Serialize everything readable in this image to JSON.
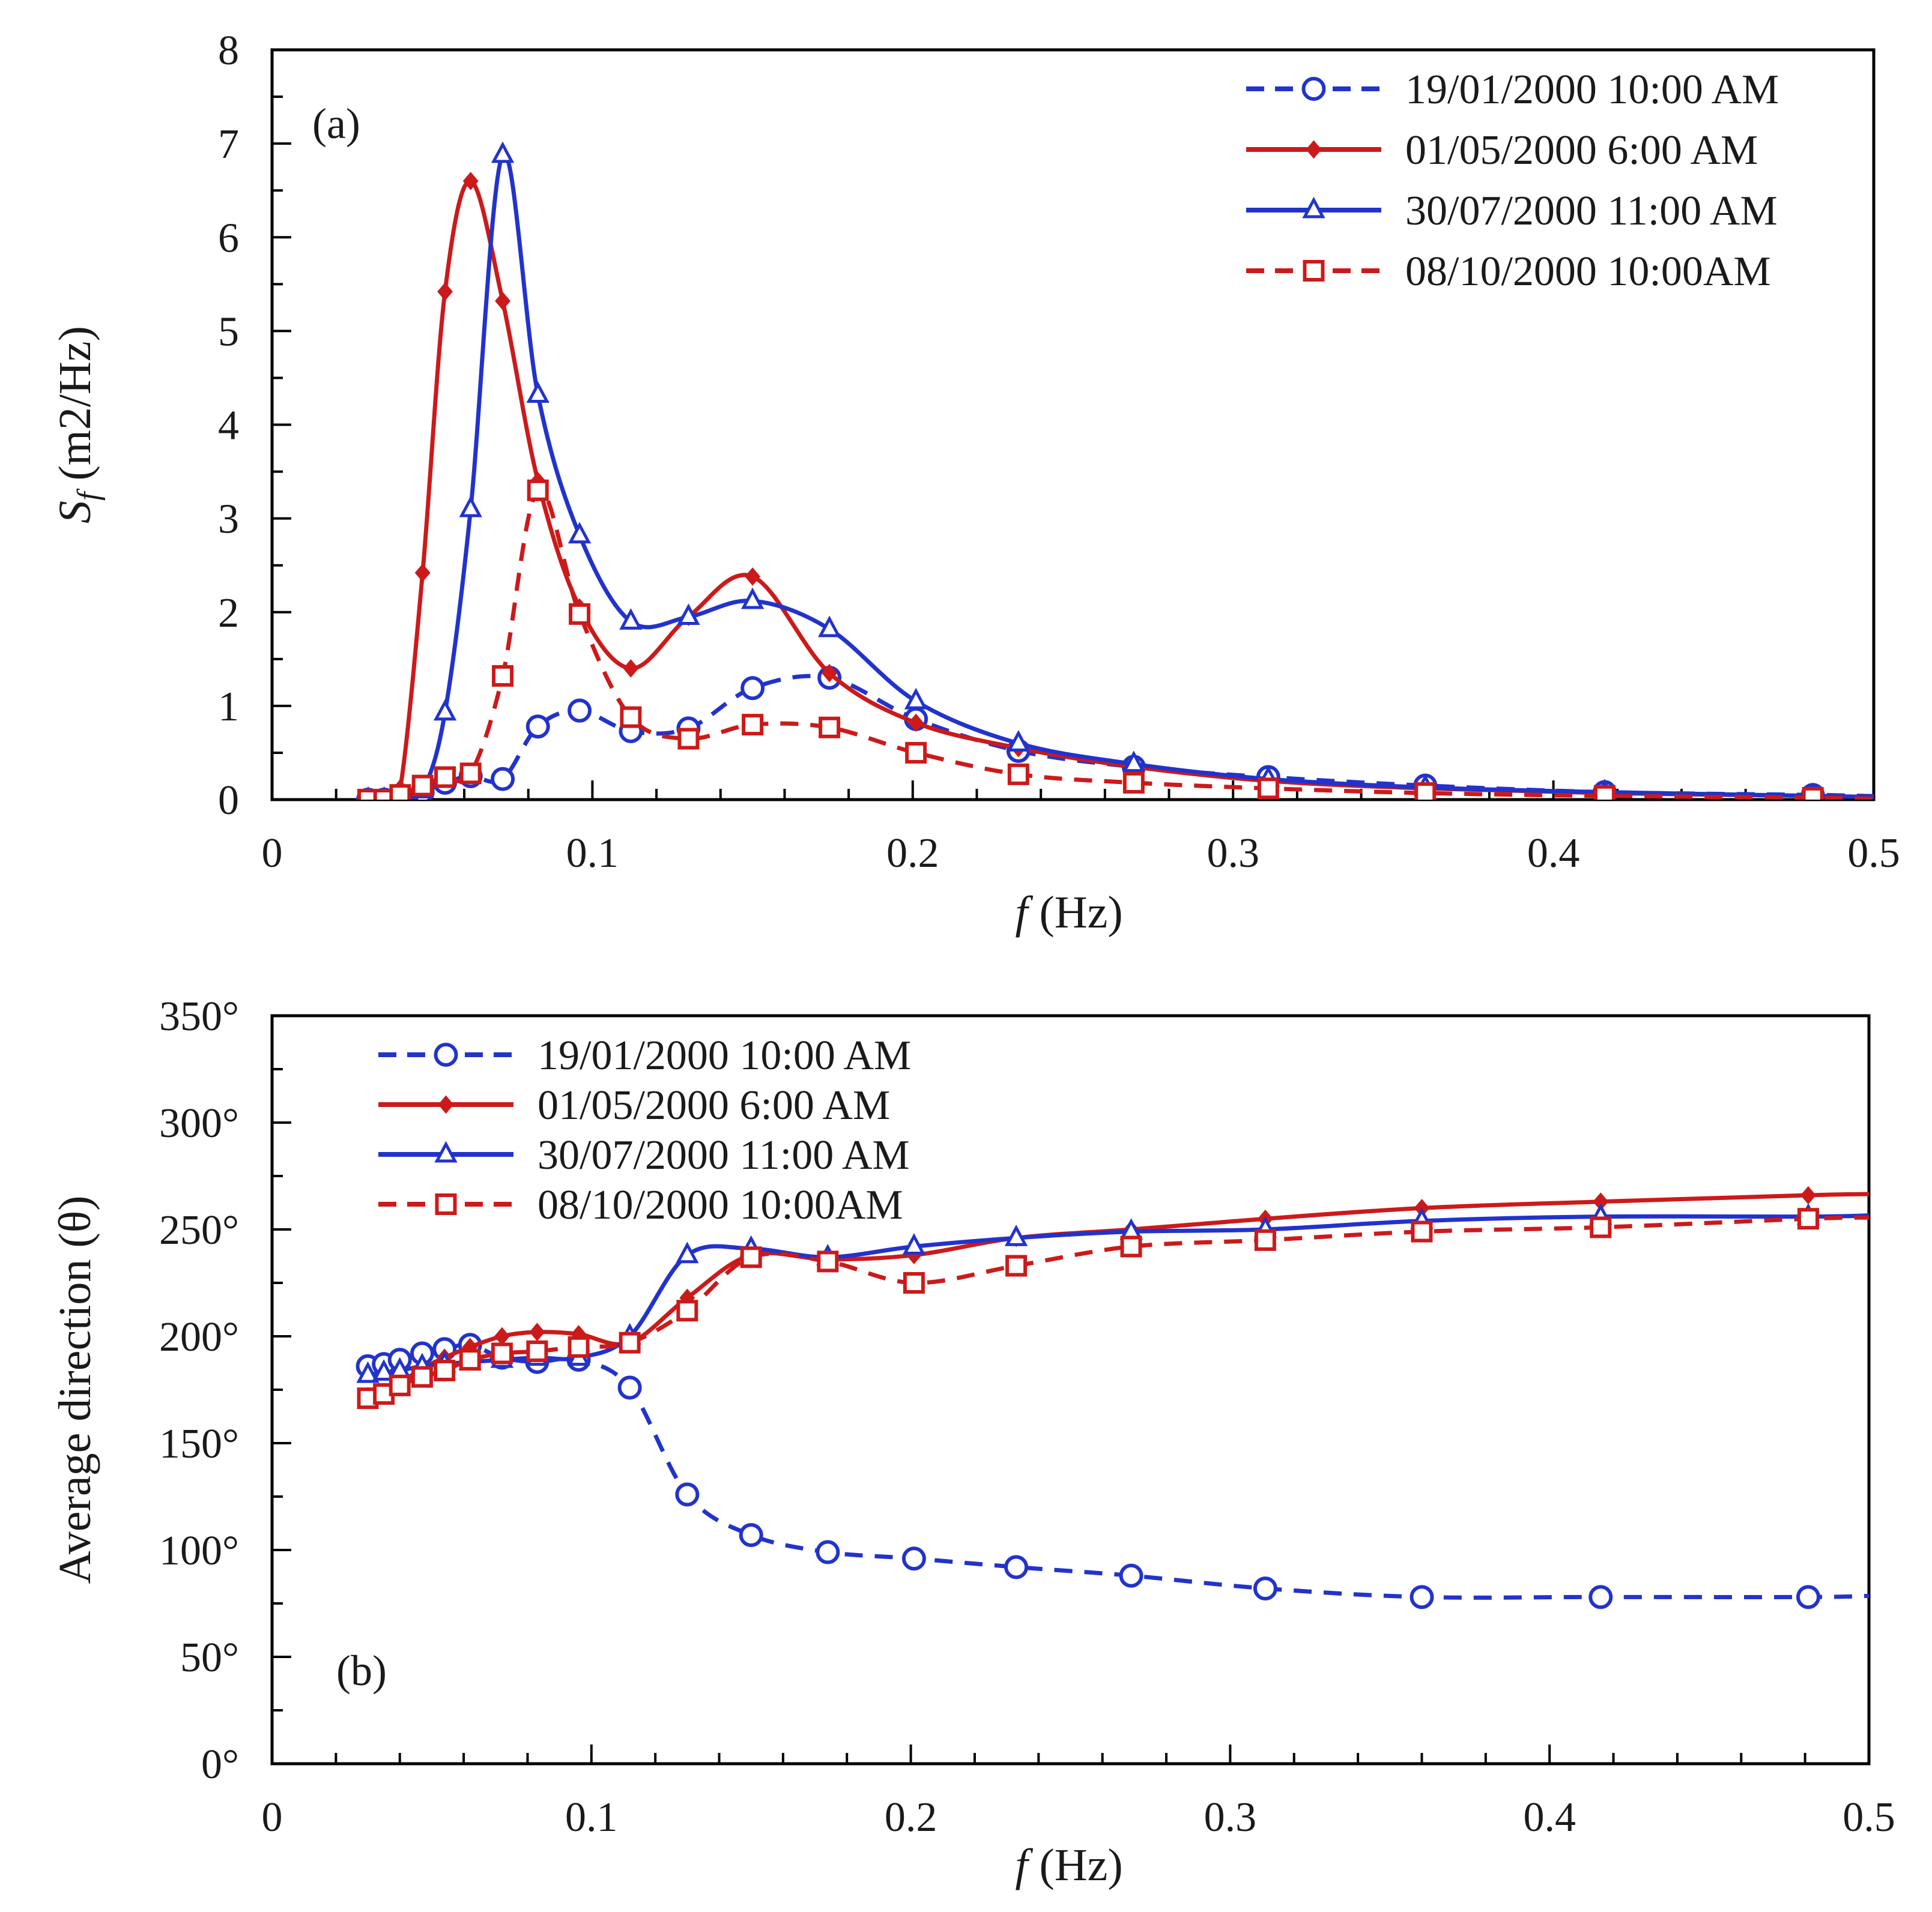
{
  "colors": {
    "blue": "#2233cc",
    "red": "#cc1a1a",
    "axis": "#000000"
  },
  "chart_data": [
    {
      "type": "line",
      "panel_tag": "(a)",
      "xlabel_italic": "f",
      "xlabel_unit": " (Hz)",
      "ylabel_italic": "S",
      "ylabel_sub": "f",
      "ylabel_unit": " (m2/Hz)",
      "xlim": [
        0,
        0.5
      ],
      "ylim": [
        0,
        8
      ],
      "xticks": [
        0,
        0.1,
        0.2,
        0.3,
        0.4,
        0.5
      ],
      "xtick_labels": [
        "0",
        "0.1",
        "0.2",
        "0.3",
        "0.4",
        "0.5"
      ],
      "yticks": [
        0,
        1,
        2,
        3,
        4,
        5,
        6,
        7,
        8
      ],
      "ytick_labels": [
        "0",
        "1",
        "2",
        "3",
        "4",
        "5",
        "6",
        "7",
        "8"
      ],
      "legend_position": "top-right",
      "grid": false,
      "series": [
        {
          "name": "19/01/2000 10:00 AM",
          "color": "#2233cc",
          "dashed": true,
          "marker": "circle",
          "x": [
            0.03,
            0.035,
            0.04,
            0.047,
            0.054,
            0.062,
            0.072,
            0.083,
            0.096,
            0.112,
            0.13,
            0.15,
            0.174,
            0.201,
            0.233,
            0.269,
            0.311,
            0.36,
            0.416,
            0.481
          ],
          "y": [
            0.0,
            0.0,
            0.02,
            0.08,
            0.18,
            0.25,
            0.22,
            0.78,
            0.95,
            0.73,
            0.76,
            1.19,
            1.3,
            0.86,
            0.52,
            0.35,
            0.24,
            0.15,
            0.08,
            0.05
          ]
        },
        {
          "name": "01/05/2000 6:00 AM",
          "color": "#cc1a1a",
          "dashed": false,
          "marker": "diamond",
          "x": [
            0.03,
            0.035,
            0.04,
            0.047,
            0.054,
            0.062,
            0.072,
            0.083,
            0.096,
            0.112,
            0.13,
            0.15,
            0.174,
            0.201,
            0.233,
            0.269,
            0.311,
            0.36,
            0.416,
            0.481
          ],
          "y": [
            0.0,
            0.0,
            0.12,
            2.42,
            5.42,
            6.6,
            5.32,
            3.4,
            2.05,
            1.4,
            1.95,
            2.38,
            1.35,
            0.82,
            0.55,
            0.35,
            0.2,
            0.12,
            0.07,
            0.04
          ]
        },
        {
          "name": "30/07/2000 11:00 AM",
          "color": "#2233cc",
          "dashed": false,
          "marker": "triangle",
          "x": [
            0.03,
            0.035,
            0.04,
            0.047,
            0.054,
            0.062,
            0.072,
            0.083,
            0.096,
            0.112,
            0.13,
            0.15,
            0.174,
            0.201,
            0.233,
            0.269,
            0.311,
            0.36,
            0.416,
            0.481
          ],
          "y": [
            0.0,
            0.0,
            0.02,
            0.1,
            0.93,
            3.1,
            6.88,
            4.32,
            2.82,
            1.9,
            1.95,
            2.12,
            1.82,
            1.05,
            0.6,
            0.38,
            0.22,
            0.13,
            0.08,
            0.04
          ]
        },
        {
          "name": "08/10/2000 10:00AM",
          "color": "#cc1a1a",
          "dashed": true,
          "marker": "square",
          "x": [
            0.03,
            0.035,
            0.04,
            0.047,
            0.054,
            0.062,
            0.072,
            0.083,
            0.096,
            0.112,
            0.13,
            0.15,
            0.174,
            0.201,
            0.233,
            0.269,
            0.311,
            0.36,
            0.416,
            0.481
          ],
          "y": [
            0.0,
            0.0,
            0.05,
            0.15,
            0.24,
            0.28,
            1.32,
            3.3,
            1.98,
            0.88,
            0.65,
            0.8,
            0.77,
            0.5,
            0.27,
            0.18,
            0.12,
            0.07,
            0.04,
            0.02
          ]
        }
      ]
    },
    {
      "type": "line",
      "panel_tag": "(b)",
      "xlabel_italic": "f",
      "xlabel_unit": " (Hz)",
      "ylabel": "Average direction (θ)",
      "xlim": [
        0,
        0.5
      ],
      "ylim": [
        0,
        350
      ],
      "xticks": [
        0,
        0.1,
        0.2,
        0.3,
        0.4,
        0.5
      ],
      "xtick_labels": [
        "0",
        "0.1",
        "0.2",
        "0.3",
        "0.4",
        "0.5"
      ],
      "yticks": [
        0,
        50,
        100,
        150,
        200,
        250,
        300,
        350
      ],
      "ytick_labels": [
        "0°",
        "50°",
        "100°",
        "150°",
        "200°",
        "250°",
        "300°",
        "350°"
      ],
      "legend_position": "top-left",
      "grid": false,
      "series": [
        {
          "name": "19/01/2000 10:00 AM",
          "color": "#2233cc",
          "dashed": true,
          "marker": "circle",
          "x": [
            0.03,
            0.035,
            0.04,
            0.047,
            0.054,
            0.062,
            0.072,
            0.083,
            0.096,
            0.112,
            0.13,
            0.15,
            0.174,
            0.201,
            0.233,
            0.269,
            0.311,
            0.36,
            0.416,
            0.481
          ],
          "y": [
            186,
            187,
            189,
            192,
            194,
            196,
            190,
            188,
            189,
            176,
            126,
            107,
            99,
            96,
            92,
            88,
            82,
            78,
            78,
            78
          ]
        },
        {
          "name": "01/05/2000 6:00 AM",
          "color": "#cc1a1a",
          "dashed": false,
          "marker": "diamond",
          "x": [
            0.03,
            0.035,
            0.04,
            0.047,
            0.054,
            0.062,
            0.072,
            0.083,
            0.096,
            0.112,
            0.13,
            0.15,
            0.174,
            0.201,
            0.233,
            0.269,
            0.311,
            0.36,
            0.416,
            0.481
          ],
          "y": [
            172,
            174,
            178,
            185,
            190,
            195,
            200,
            202,
            201,
            197,
            218,
            238,
            236,
            238,
            246,
            250,
            255,
            260,
            263,
            266
          ]
        },
        {
          "name": "30/07/2000 11:00 AM",
          "color": "#2233cc",
          "dashed": false,
          "marker": "triangle",
          "x": [
            0.03,
            0.035,
            0.04,
            0.047,
            0.054,
            0.062,
            0.072,
            0.083,
            0.096,
            0.112,
            0.13,
            0.15,
            0.174,
            0.201,
            0.233,
            0.269,
            0.311,
            0.36,
            0.416,
            0.481
          ],
          "y": [
            182,
            183,
            184,
            186,
            187,
            188,
            189,
            190,
            190,
            200,
            238,
            241,
            237,
            242,
            246,
            249,
            250,
            254,
            256,
            256
          ]
        },
        {
          "name": "08/10/2000 10:00AM",
          "color": "#cc1a1a",
          "dashed": true,
          "marker": "square",
          "x": [
            0.03,
            0.035,
            0.04,
            0.047,
            0.054,
            0.062,
            0.072,
            0.083,
            0.096,
            0.112,
            0.13,
            0.15,
            0.174,
            0.201,
            0.233,
            0.269,
            0.311,
            0.36,
            0.416,
            0.481
          ],
          "y": [
            171,
            173,
            177,
            181,
            184,
            189,
            192,
            193,
            195,
            197,
            212,
            237,
            235,
            225,
            233,
            242,
            245,
            249,
            251,
            255
          ]
        }
      ]
    }
  ]
}
